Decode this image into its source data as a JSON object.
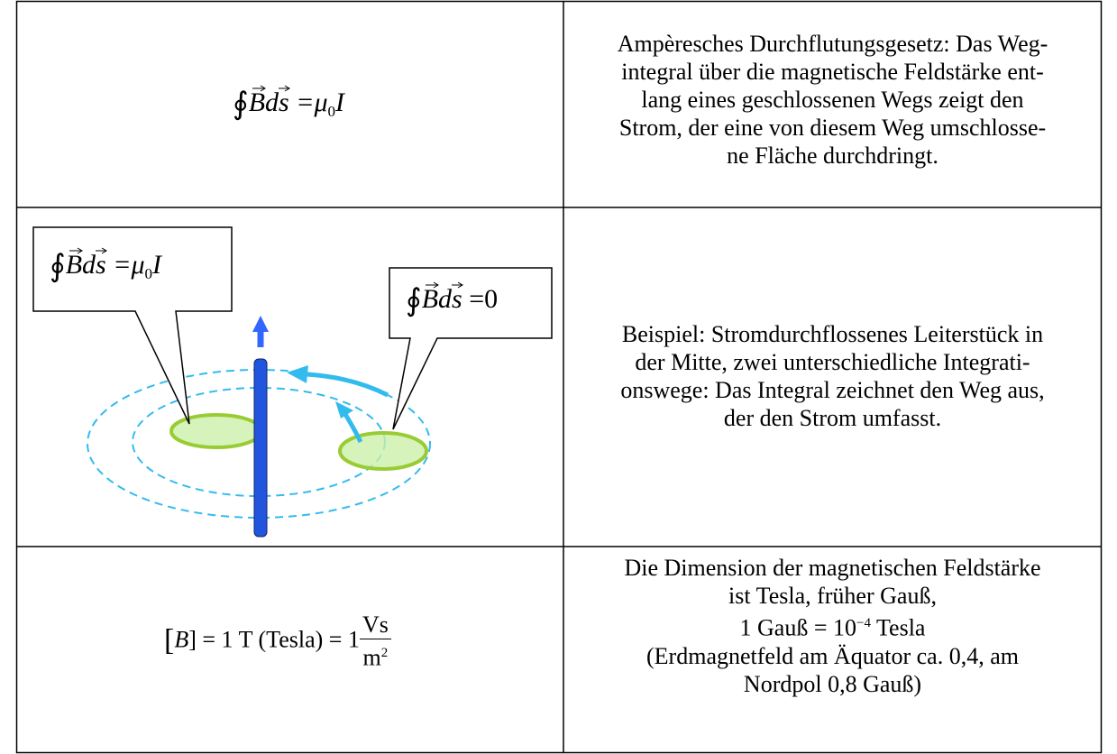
{
  "table": {
    "rows": [
      {
        "formula": {
          "integral": "∮",
          "field": "B",
          "path": "ds",
          "relation": "=μ",
          "index": "0",
          "current": "I"
        },
        "text": [
          "Ampèresches Durchflutungsgesetz: Das Weg-",
          "integral über die magnetische Feldstärke ent-",
          "lang eines geschlossenen Wegs zeigt den",
          "Strom, der eine von diesem Weg umschlosse-",
          "ne Fläche durchdringt."
        ]
      },
      {
        "callout_left": {
          "integral": "∮",
          "field": "B",
          "path": "ds",
          "relation": "=μ",
          "index": "0",
          "current": "I"
        },
        "callout_right": {
          "integral": "∮",
          "field": "B",
          "path": "ds",
          "relation": "=0"
        },
        "text": [
          "Beispiel: Stromdurchflossenes Leiterstück in",
          "der Mitte, zwei unterschiedliche Integrati-",
          "onswege: Das Integral zeichnet den Weg aus,",
          "der den Strom umfasst."
        ]
      },
      {
        "formula": {
          "open": "[",
          "field": "B",
          "rest": "] = 1 T (Tesla) = 1",
          "numerator": "Vs",
          "denominator": "m",
          "exponent": "2"
        },
        "text": [
          "Die Dimension der magnetischen Feldstärke",
          "ist Tesla, früher Gauß,"
        ],
        "gauss": {
          "before": "1 Gauß = 10",
          "exponent": "−4",
          "after": " Tesla"
        },
        "text_end": [
          "(Erdmagnetfeld am Äquator ca. 0,4, am",
          "Nordpol 0,8 Gauß)"
        ]
      }
    ]
  }
}
